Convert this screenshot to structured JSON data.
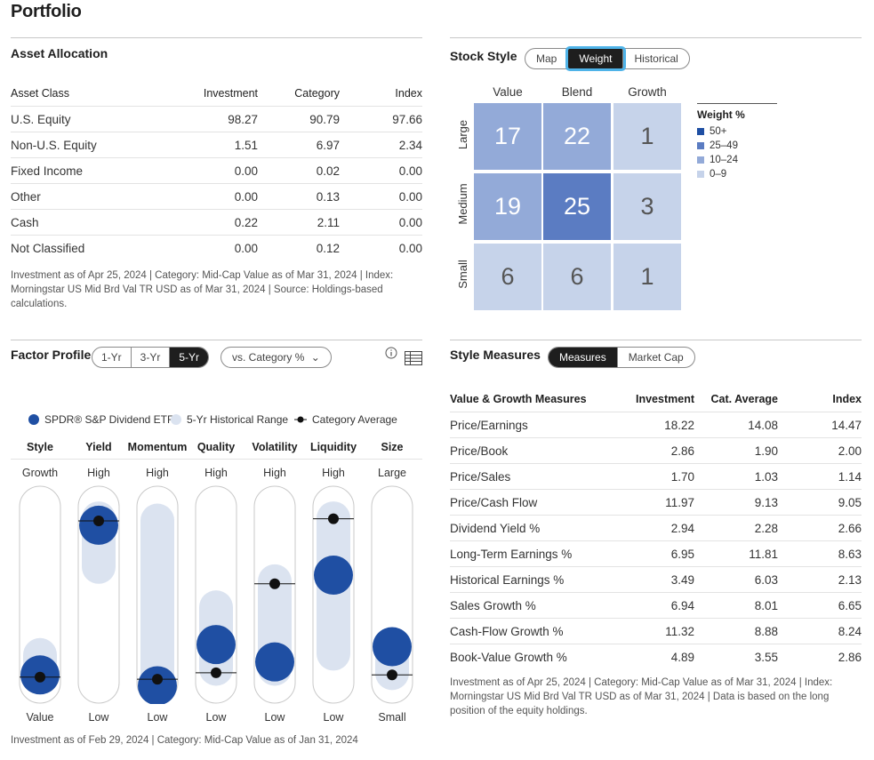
{
  "page_title": "Portfolio",
  "asset_allocation": {
    "title": "Asset Allocation",
    "headers": [
      "Asset Class",
      "Investment",
      "Category",
      "Index"
    ],
    "rows": [
      [
        "U.S. Equity",
        "98.27",
        "90.79",
        "97.66"
      ],
      [
        "Non-U.S. Equity",
        "1.51",
        "6.97",
        "2.34"
      ],
      [
        "Fixed Income",
        "0.00",
        "0.02",
        "0.00"
      ],
      [
        "Other",
        "0.00",
        "0.13",
        "0.00"
      ],
      [
        "Cash",
        "0.22",
        "2.11",
        "0.00"
      ],
      [
        "Not Classified",
        "0.00",
        "0.12",
        "0.00"
      ]
    ],
    "footnote": "Investment as of Apr 25, 2024 | Category: Mid-Cap Value as of Mar 31, 2024 | Index: Morningstar US Mid Brd Val TR USD as of Mar 31, 2024 | Source: Holdings-based calculations."
  },
  "stock_style": {
    "title": "Stock Style",
    "tabs": [
      "Map",
      "Weight",
      "Historical"
    ],
    "active_tab": "Weight",
    "columns": [
      "Value",
      "Blend",
      "Growth"
    ],
    "rows": [
      "Large",
      "Medium",
      "Small"
    ],
    "values": [
      [
        "17",
        "22",
        "1"
      ],
      [
        "19",
        "25",
        "3"
      ],
      [
        "6",
        "6",
        "1"
      ]
    ],
    "legend_title": "Weight %",
    "legend": [
      {
        "label": "50+",
        "color": "#1f4fa3"
      },
      {
        "label": "25–49",
        "color": "#5b7cc2"
      },
      {
        "label": "10–24",
        "color": "#93aad8"
      },
      {
        "label": "0–9",
        "color": "#c6d3ea"
      }
    ]
  },
  "factor_profile": {
    "title": "Factor Profile",
    "periods": [
      "1-Yr",
      "3-Yr",
      "5-Yr"
    ],
    "active_period": "5-Yr",
    "compare_label": "vs. Category %",
    "legend": {
      "fund": "SPDR® S&P Dividend ETF",
      "range": "5-Yr Historical Range",
      "category": "Category Average"
    },
    "factors": [
      {
        "name": "Style",
        "high": "Growth",
        "low": "Value",
        "fund": 0.13,
        "category": 0.12,
        "range": [
          0.05,
          0.3
        ]
      },
      {
        "name": "Yield",
        "high": "High",
        "low": "Low",
        "fund": 0.82,
        "category": 0.84,
        "range": [
          0.55,
          0.93
        ]
      },
      {
        "name": "Momentum",
        "high": "High",
        "low": "Low",
        "fund": 0.08,
        "category": 0.11,
        "range": [
          0.03,
          0.92
        ]
      },
      {
        "name": "Quality",
        "high": "High",
        "low": "Low",
        "fund": 0.27,
        "category": 0.14,
        "range": [
          0.08,
          0.52
        ]
      },
      {
        "name": "Volatility",
        "high": "High",
        "low": "Low",
        "fund": 0.19,
        "category": 0.55,
        "range": [
          0.08,
          0.64
        ]
      },
      {
        "name": "Liquidity",
        "high": "High",
        "low": "Low",
        "fund": 0.59,
        "category": 0.85,
        "range": [
          0.15,
          0.93
        ]
      },
      {
        "name": "Size",
        "high": "Large",
        "low": "Small",
        "fund": 0.26,
        "category": 0.13,
        "range": [
          0.06,
          0.32
        ]
      }
    ],
    "footnote": "Investment as of Feb 29, 2024 | Category: Mid-Cap Value as of Jan 31, 2024"
  },
  "style_measures": {
    "title": "Style Measures",
    "tabs": [
      "Measures",
      "Market Cap"
    ],
    "active_tab": "Measures",
    "headers": [
      "Value & Growth Measures",
      "Investment",
      "Cat. Average",
      "Index"
    ],
    "rows": [
      [
        "Price/Earnings",
        "18.22",
        "14.08",
        "14.47"
      ],
      [
        "Price/Book",
        "2.86",
        "1.90",
        "2.00"
      ],
      [
        "Price/Sales",
        "1.70",
        "1.03",
        "1.14"
      ],
      [
        "Price/Cash Flow",
        "11.97",
        "9.13",
        "9.05"
      ],
      [
        "Dividend Yield %",
        "2.94",
        "2.28",
        "2.66"
      ],
      [
        "Long-Term Earnings %",
        "6.95",
        "11.81",
        "8.63"
      ],
      [
        "Historical Earnings %",
        "3.49",
        "6.03",
        "2.13"
      ],
      [
        "Sales Growth %",
        "6.94",
        "8.01",
        "6.65"
      ],
      [
        "Cash-Flow Growth %",
        "11.32",
        "8.88",
        "8.24"
      ],
      [
        "Book-Value Growth %",
        "4.89",
        "3.55",
        "2.86"
      ]
    ],
    "footnote": "Investment as of Apr 25, 2024 | Category: Mid-Cap Value as of Mar 31, 2024 | Index: Morningstar US Mid Brd Val TR USD as of Mar 31, 2024 | Data is based on the long position of the equity holdings."
  },
  "colors": {
    "fund": "#1f4fa3",
    "range": "#dbe3f0",
    "track_border": "#c9c9c9",
    "accent_glow": "#4fb3e8"
  }
}
